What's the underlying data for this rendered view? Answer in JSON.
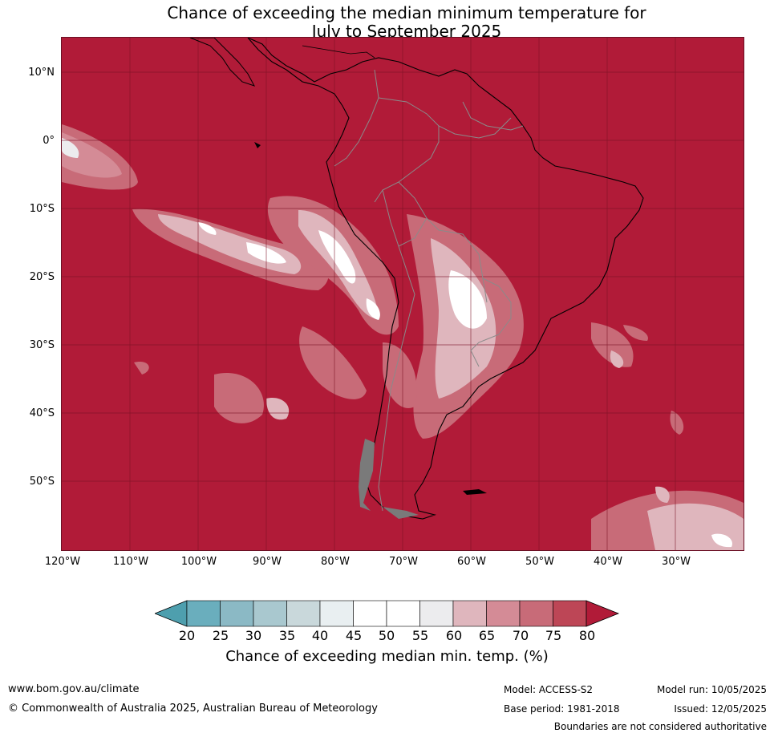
{
  "title": {
    "line1": "Chance of exceeding the median minimum temperature for",
    "line2": "July to September 2025"
  },
  "map": {
    "lat_ticks": [
      "10°N",
      "0°",
      "10°S",
      "20°S",
      "30°S",
      "40°S",
      "50°S"
    ],
    "lon_ticks": [
      "120°W",
      "110°W",
      "100°W",
      "90°W",
      "80°W",
      "70°W",
      "60°W",
      "50°W",
      "40°W",
      "30°W"
    ],
    "background_color": "#b11b38"
  },
  "colorbar": {
    "labels": [
      "20",
      "25",
      "30",
      "35",
      "40",
      "45",
      "50",
      "55",
      "60",
      "65",
      "70",
      "75",
      "80"
    ],
    "colors": [
      "#4e9fae",
      "#6aaebd",
      "#8bb9c5",
      "#a9c8cf",
      "#c9d8db",
      "#e9eff1",
      "#ffffff",
      "#ffffff",
      "#ececee",
      "#dfb6bd",
      "#d48b96",
      "#c86b78",
      "#bd4656",
      "#b11b38"
    ],
    "title": "Chance of exceeding median min. temp. (%)"
  },
  "footer": {
    "website": "www.bom.gov.au/climate",
    "copyright": "© Commonwealth of Australia 2025, Australian Bureau of Meteorology",
    "model": "Model: ACCESS-S2",
    "base_period": "Base period: 1981-2018",
    "model_run": "Model run: 10/05/2025",
    "issued": "Issued: 12/05/2025",
    "disclaimer": "Boundaries are not considered authoritative"
  }
}
